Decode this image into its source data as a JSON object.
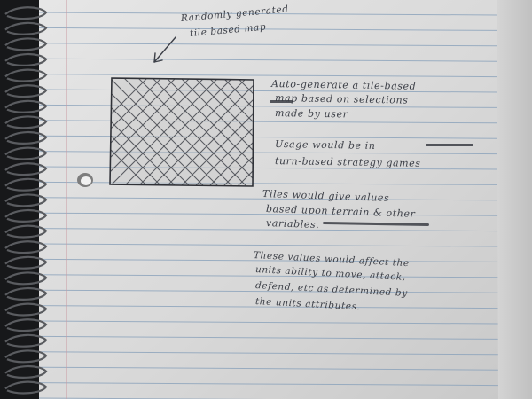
{
  "caption": [
    "Randomly generated",
    "tile based map"
  ],
  "notes": [
    {
      "lines": [
        "Auto-generate a tile-based",
        "map based on selections",
        "made by user"
      ]
    },
    {
      "lines": [
        "Usage would be in",
        "turn-based strategy games"
      ]
    },
    {
      "lines": [
        "Tiles would give values",
        "based upon terrain & other",
        "variables."
      ]
    },
    {
      "lines": [
        "These values would affect the",
        "units ability to move, attack,",
        "defend, etc as determined by",
        "the units attributes."
      ]
    }
  ],
  "colors": {
    "paper": "#dcdcdc",
    "rule_line": "#8aa2bb",
    "margin_line": "#c99aa2",
    "ink": "#3d4048",
    "spiral": "#1a1b1e",
    "background": "#1c1d1f"
  }
}
